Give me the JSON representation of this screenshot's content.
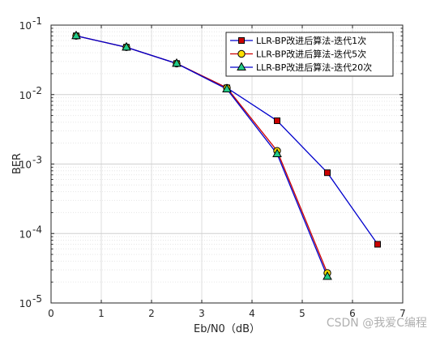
{
  "chart_data": {
    "type": "line",
    "xlabel": "Eb/N0（dB）",
    "ylabel": "BER",
    "xlim": [
      0,
      7
    ],
    "ylim": [
      1e-05,
      0.1
    ],
    "yscale": "log",
    "grid": true,
    "minor_grid": true,
    "legend_position": "top-right",
    "x_ticks": [
      "0",
      "1",
      "2",
      "3",
      "4",
      "5",
      "6",
      "7"
    ],
    "y_tick_mantissa": [
      "10",
      "10",
      "10",
      "10",
      "10"
    ],
    "y_tick_exponents": [
      "-5",
      "-4",
      "-3",
      "-2",
      "-1"
    ],
    "series": [
      {
        "name": "LLR-BP改进后算法-迭代1次",
        "color": "#0000cc",
        "marker": "square",
        "marker_fill": "#cc0000",
        "x": [
          0.5,
          1.5,
          2.5,
          3.5,
          4.5,
          5.5,
          6.5
        ],
        "y": [
          0.07,
          0.048,
          0.028,
          0.0125,
          0.0042,
          0.00075,
          7e-05
        ]
      },
      {
        "name": "LLR-BP改进后算法-迭代5次",
        "color": "#cc0000",
        "marker": "circle",
        "marker_fill": "#ffe000",
        "x": [
          0.5,
          1.5,
          2.5,
          3.5,
          4.5,
          5.5
        ],
        "y": [
          0.07,
          0.048,
          0.028,
          0.0125,
          0.00155,
          2.7e-05
        ]
      },
      {
        "name": "LLR-BP改进后算法-迭代20次",
        "color": "#0000cc",
        "marker": "triangle",
        "marker_fill": "#22cc88",
        "x": [
          0.5,
          1.5,
          2.5,
          3.5,
          4.5,
          5.5
        ],
        "y": [
          0.07,
          0.048,
          0.028,
          0.012,
          0.0014,
          2.4e-05
        ]
      }
    ]
  },
  "watermark": "CSDN @我爱C编程"
}
